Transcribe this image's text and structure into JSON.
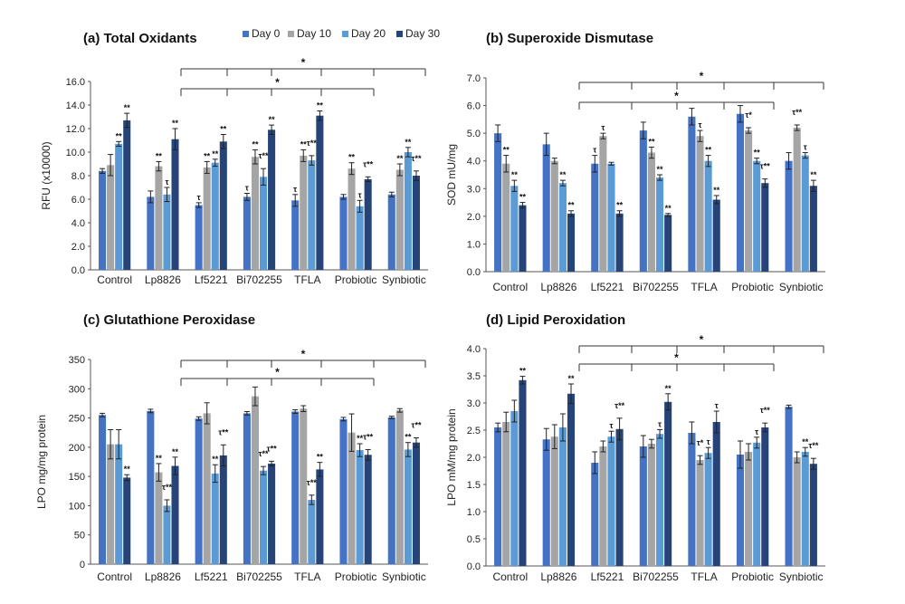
{
  "legend": {
    "placement": "top-center",
    "entries": [
      {
        "name": "Day 0",
        "color": "#4472C4"
      },
      {
        "name": "Day 10",
        "color": "#A5A5A5"
      },
      {
        "name": "Day 20",
        "color": "#5B9BD5"
      },
      {
        "name": "Day 30",
        "color": "#264478"
      }
    ]
  },
  "chart_data": [
    {
      "type": "bar",
      "title": "(a) Total Oxidants",
      "ylabel": "RFU (x10000)",
      "ylim": [
        0,
        16
      ],
      "yticks": [
        "0.0",
        "2.0",
        "4.0",
        "6.0",
        "8.0",
        "10.0",
        "12.0",
        "14.0",
        "16.0"
      ],
      "categories": [
        "Control",
        "Lp8826",
        "Lf5221",
        "Bi702255",
        "TFLA",
        "Probiotic",
        "Synbiotic"
      ],
      "series": [
        {
          "name": "Day 0",
          "values": [
            8.4,
            6.2,
            5.5,
            6.2,
            5.9,
            6.2,
            6.4
          ],
          "errors": [
            0.2,
            0.5,
            0.2,
            0.3,
            0.5,
            0.2,
            0.2
          ],
          "marks": [
            "",
            "",
            "τ",
            "τ",
            "τ",
            "",
            ""
          ]
        },
        {
          "name": "Day 10",
          "values": [
            8.9,
            8.8,
            8.7,
            9.6,
            9.7,
            8.6,
            8.5
          ],
          "errors": [
            0.9,
            0.4,
            0.5,
            0.6,
            0.5,
            0.5,
            0.5
          ],
          "marks": [
            "",
            "**",
            "**",
            "**",
            "**",
            "**",
            "**"
          ]
        },
        {
          "name": "Day 20",
          "values": [
            10.7,
            6.4,
            9.1,
            7.9,
            9.3,
            5.4,
            10.0
          ],
          "errors": [
            0.2,
            0.6,
            0.3,
            0.7,
            0.4,
            0.5,
            0.4
          ],
          "marks": [
            "**",
            "τ",
            "**",
            "τ**",
            "τ**",
            "τ",
            "**"
          ]
        },
        {
          "name": "Day 30",
          "values": [
            12.7,
            11.1,
            10.9,
            11.9,
            13.1,
            7.7,
            8.0
          ],
          "errors": [
            0.6,
            0.9,
            0.6,
            0.4,
            0.4,
            0.2,
            0.4
          ],
          "marks": [
            "**",
            "**",
            "**",
            "**",
            "**",
            "τ**",
            "τ**"
          ]
        }
      ],
      "brackets": [
        "*",
        "*"
      ]
    },
    {
      "type": "bar",
      "title": "(b) Superoxide Dismutase",
      "ylabel": "SOD mU/mg",
      "ylim": [
        0,
        7
      ],
      "yticks": [
        "0.0",
        "1.0",
        "2.0",
        "3.0",
        "4.0",
        "5.0",
        "6.0",
        "7.0"
      ],
      "categories": [
        "Control",
        "Lp8826",
        "Lf5221",
        "Bi702255",
        "TFLA",
        "Probiotic",
        "Synbiotic"
      ],
      "series": [
        {
          "name": "Day 0",
          "values": [
            5.0,
            4.6,
            3.9,
            5.1,
            5.6,
            5.7,
            4.0
          ],
          "errors": [
            0.3,
            0.4,
            0.3,
            0.3,
            0.3,
            0.3,
            0.3
          ],
          "marks": [
            "",
            "",
            "τ",
            "",
            "",
            "",
            ""
          ]
        },
        {
          "name": "Day 10",
          "values": [
            3.9,
            4.0,
            4.9,
            4.3,
            4.9,
            5.1,
            5.2
          ],
          "errors": [
            0.3,
            0.1,
            0.1,
            0.2,
            0.2,
            0.1,
            0.1
          ],
          "marks": [
            "**",
            "",
            "τ",
            "**",
            "τ",
            "τ*",
            "τ**"
          ]
        },
        {
          "name": "Day 20",
          "values": [
            3.1,
            3.2,
            3.9,
            3.4,
            4.0,
            4.0,
            4.2
          ],
          "errors": [
            0.2,
            0.1,
            0.05,
            0.1,
            0.2,
            0.1,
            0.1
          ],
          "marks": [
            "**",
            "**",
            "",
            "**",
            "**",
            "**",
            "τ"
          ]
        },
        {
          "name": "Day 30",
          "values": [
            2.4,
            2.1,
            2.1,
            2.05,
            2.6,
            3.2,
            3.1
          ],
          "errors": [
            0.1,
            0.1,
            0.1,
            0.05,
            0.15,
            0.15,
            0.2
          ],
          "marks": [
            "**",
            "**",
            "**",
            "**",
            "**",
            "τ**",
            "**"
          ]
        }
      ],
      "brackets": [
        "*",
        "*"
      ]
    },
    {
      "type": "bar",
      "title": "(c) Glutathione Peroxidase",
      "ylabel": "LPO mg/mg protein",
      "ylim": [
        0,
        350
      ],
      "yticks": [
        "0",
        "50",
        "100",
        "150",
        "200",
        "250",
        "300",
        "350"
      ],
      "categories": [
        "Control",
        "Lp8826",
        "Lf5221",
        "Bi702255",
        "TFLA",
        "Probiotic",
        "Synbiotic"
      ],
      "series": [
        {
          "name": "Day 0",
          "values": [
            255,
            262,
            249,
            258,
            261,
            248,
            251
          ],
          "errors": [
            3,
            3,
            3,
            3,
            3,
            3,
            2
          ],
          "marks": [
            "",
            "",
            "",
            "",
            "",
            "",
            ""
          ]
        },
        {
          "name": "Day 10",
          "values": [
            205,
            157,
            258,
            287,
            266,
            225,
            263
          ],
          "errors": [
            25,
            15,
            18,
            16,
            5,
            32,
            3
          ],
          "marks": [
            "",
            "**",
            "",
            "",
            "",
            "",
            ""
          ]
        },
        {
          "name": "Day 20",
          "values": [
            205,
            100,
            155,
            160,
            110,
            195,
            196
          ],
          "errors": [
            25,
            10,
            15,
            7,
            8,
            11,
            12
          ],
          "marks": [
            "",
            "τ**",
            "**",
            "τ**",
            "τ**",
            "**",
            "**"
          ]
        },
        {
          "name": "Day 30",
          "values": [
            148,
            168,
            186,
            172,
            162,
            187,
            208
          ],
          "errors": [
            5,
            15,
            18,
            4,
            12,
            9,
            8
          ],
          "marks": [
            "**",
            "**",
            "τ**",
            "τ**",
            "**",
            "τ**",
            "τ**"
          ]
        }
      ],
      "brackets": [
        "*",
        "*"
      ]
    },
    {
      "type": "bar",
      "title": "(d) Lipid Peroxidation",
      "ylabel": "LPO mM/mg protein",
      "ylim": [
        0,
        4
      ],
      "yticks": [
        "0.0",
        "0.5",
        "1.0",
        "1.5",
        "2.0",
        "2.5",
        "3.0",
        "3.5",
        "4.0"
      ],
      "categories": [
        "Control",
        "Lp8826",
        "Lf5221",
        "Bi702255",
        "TFLA",
        "Probiotic",
        "Synbiotic"
      ],
      "series": [
        {
          "name": "Day 0",
          "values": [
            2.55,
            2.33,
            1.9,
            2.2,
            2.45,
            2.05,
            2.93
          ],
          "errors": [
            0.08,
            0.2,
            0.2,
            0.2,
            0.2,
            0.25,
            0.03
          ],
          "marks": [
            "",
            "",
            "",
            "",
            "",
            "",
            ""
          ]
        },
        {
          "name": "Day 10",
          "values": [
            2.65,
            2.38,
            2.2,
            2.25,
            1.95,
            2.1,
            2.0
          ],
          "errors": [
            0.18,
            0.22,
            0.1,
            0.08,
            0.08,
            0.15,
            0.1
          ],
          "marks": [
            "",
            "",
            "",
            "",
            "τ*",
            "",
            ""
          ]
        },
        {
          "name": "Day 20",
          "values": [
            2.85,
            2.55,
            2.38,
            2.43,
            2.08,
            2.27,
            2.1
          ],
          "errors": [
            0.2,
            0.25,
            0.1,
            0.08,
            0.1,
            0.1,
            0.08
          ],
          "marks": [
            "",
            "",
            "τ",
            "τ",
            "τ",
            "τ",
            "**"
          ]
        },
        {
          "name": "Day 30",
          "values": [
            3.42,
            3.17,
            2.52,
            3.02,
            2.65,
            2.55,
            1.88
          ],
          "errors": [
            0.07,
            0.18,
            0.2,
            0.15,
            0.2,
            0.08,
            0.1
          ],
          "marks": [
            "**",
            "**",
            "τ**",
            "**",
            "τ",
            "τ**",
            "τ**"
          ]
        }
      ],
      "brackets": [
        "*",
        "*"
      ]
    }
  ]
}
